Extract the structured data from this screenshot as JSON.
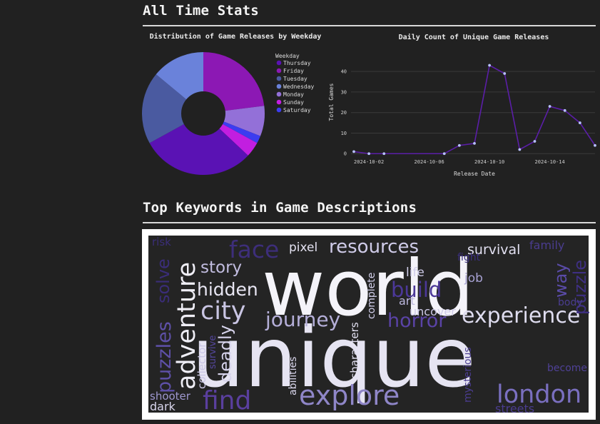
{
  "sections": {
    "all_time": "All Time Stats",
    "keywords": "Top Keywords in Game Descriptions"
  },
  "pie_chart": {
    "title": "Distribution of Game Releases by Weekday",
    "legend_title": "Weekday"
  },
  "line_chart": {
    "title": "Daily Count of Unique Game Releases",
    "xlabel": "Release Date",
    "ylabel": "Total Games"
  },
  "wordcloud": {
    "words": [
      {
        "text": "unique",
        "color": "#e6e4f2"
      },
      {
        "text": "world",
        "color": "#f4f3f9"
      },
      {
        "text": "explore",
        "color": "#8f86c8"
      },
      {
        "text": "london",
        "color": "#7a6fc0"
      },
      {
        "text": "find",
        "color": "#5a3f9e"
      },
      {
        "text": "adventure",
        "color": "#efeef6"
      },
      {
        "text": "experience",
        "color": "#dedcef"
      },
      {
        "text": "city",
        "color": "#c9c5e3"
      },
      {
        "text": "journey",
        "color": "#b5afd9"
      },
      {
        "text": "face",
        "color": "#3d2e7a"
      },
      {
        "text": "resources",
        "color": "#cfcbe8"
      },
      {
        "text": "hidden",
        "color": "#e8e6f3"
      },
      {
        "text": "story",
        "color": "#c2bde0"
      },
      {
        "text": "horror",
        "color": "#5a43a6"
      },
      {
        "text": "build",
        "color": "#4c3899"
      },
      {
        "text": "puzzles",
        "color": "#5e50a8"
      },
      {
        "text": "solve",
        "color": "#3a2d78"
      },
      {
        "text": "deadly",
        "color": "#d7d4ec"
      },
      {
        "text": "survival",
        "color": "#e2e0f1"
      },
      {
        "text": "pixel",
        "color": "#e5e3f2"
      },
      {
        "text": "family",
        "color": "#4a3c8e"
      },
      {
        "text": "way",
        "color": "#5a4ba8"
      },
      {
        "text": "puzzle",
        "color": "#3e2f82"
      },
      {
        "text": "life",
        "color": "#d0cdea"
      },
      {
        "text": "job",
        "color": "#a8a2d4"
      },
      {
        "text": "art",
        "color": "#bdb8de"
      },
      {
        "text": "uncover",
        "color": "#cfcbe8"
      },
      {
        "text": "complete",
        "color": "#d2cfeb"
      },
      {
        "text": "characters",
        "color": "#e3e1f2"
      },
      {
        "text": "abilities",
        "color": "#dcd9ef"
      },
      {
        "text": "collector",
        "color": "#cac6e5"
      },
      {
        "text": "survive",
        "color": "#55479f"
      },
      {
        "text": "shooter",
        "color": "#9e97cf"
      },
      {
        "text": "dark",
        "color": "#d8d5ec"
      },
      {
        "text": "mysterious",
        "color": "#4b3d91"
      },
      {
        "text": "streets",
        "color": "#4a3c8e"
      },
      {
        "text": "become",
        "color": "#4f4197"
      },
      {
        "text": "body",
        "color": "#4a3d90"
      },
      {
        "text": "fight",
        "color": "#3b2f7e"
      },
      {
        "text": "risk",
        "color": "#3a2e78"
      }
    ]
  },
  "chart_data": [
    {
      "type": "pie",
      "title": "Distribution of Game Releases by Weekday",
      "legend_title": "Weekday",
      "legend_position": "right",
      "donut": true,
      "labels": [
        "Thursday",
        "Friday",
        "Tuesday",
        "Wednesday",
        "Monday",
        "Sunday",
        "Saturday"
      ],
      "values": [
        30,
        23,
        19,
        14,
        8,
        4,
        2
      ],
      "colors": [
        "#5a12b4",
        "#8c18b4",
        "#4a5aa0",
        "#6a82da",
        "#9370d8",
        "#c21ee0",
        "#3c3cf0"
      ]
    },
    {
      "type": "line",
      "title": "Daily Count of Unique Game Releases",
      "xlabel": "Release Date",
      "ylabel": "Total Games",
      "x": [
        "2024-10-01",
        "2024-10-02",
        "2024-10-03",
        "2024-10-04",
        "2024-10-05",
        "2024-10-06",
        "2024-10-07",
        "2024-10-08",
        "2024-10-09",
        "2024-10-10",
        "2024-10-11",
        "2024-10-12",
        "2024-10-13",
        "2024-10-14",
        "2024-10-15",
        "2024-10-16",
        "2024-10-17"
      ],
      "y": [
        1,
        0,
        0,
        null,
        null,
        null,
        0,
        4,
        5,
        43,
        39,
        2,
        6,
        23,
        21,
        15,
        4
      ],
      "x_ticks": [
        "2024-10-02",
        "2024-10-06",
        "2024-10-10",
        "2024-10-14"
      ],
      "y_ticks": [
        0,
        10,
        20,
        30,
        40
      ],
      "ylim": [
        -2,
        47
      ],
      "grid": true,
      "line_color": "#5b1ea8",
      "marker_color": "#b8c2ff"
    }
  ]
}
